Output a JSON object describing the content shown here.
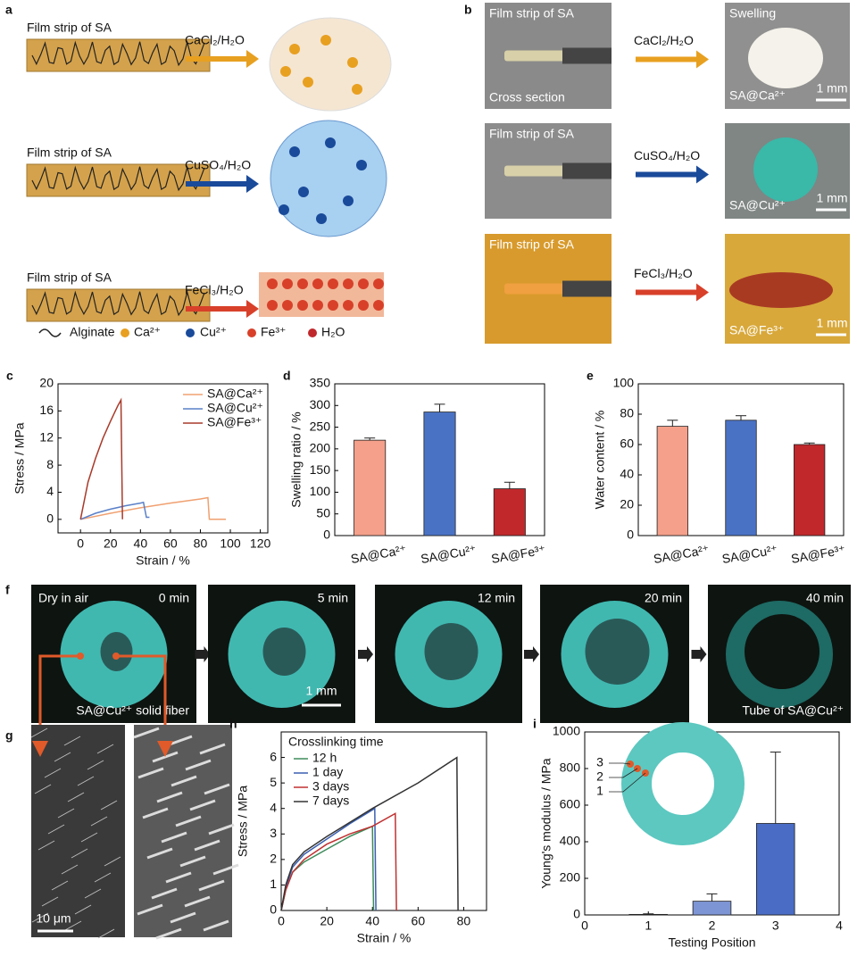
{
  "panels": {
    "a": {
      "label": "a",
      "rows": [
        {
          "strip": "Film strip of SA",
          "reagent": "CaCl₂/H₂O"
        },
        {
          "strip": "Film strip of SA",
          "reagent": "CuSO₄/H₂O"
        },
        {
          "strip": "Film strip of SA",
          "reagent": "FeCl₃/H₂O"
        }
      ],
      "legend": [
        "Alginate",
        "Ca²⁺",
        "Cu²⁺",
        "Fe³⁺",
        "H₂O"
      ]
    },
    "b": {
      "label": "b",
      "rows": [
        {
          "strip": "Film strip of SA",
          "note": "Cross section",
          "reagent": "CaCl₂/H₂O",
          "result_note": "Swelling",
          "result": "SA@Ca²⁺",
          "scale": "1 mm"
        },
        {
          "strip": "Film strip of SA",
          "reagent": "CuSO₄/H₂O",
          "result": "SA@Cu²⁺",
          "scale": "1 mm"
        },
        {
          "strip": "Film strip of SA",
          "reagent": "FeCl₃/H₂O",
          "result": "SA@Fe³⁺",
          "scale": "1 mm"
        }
      ]
    },
    "f": {
      "label": "f",
      "frames": [
        {
          "time": "0 min",
          "title": "Dry in air",
          "caption": "SA@Cu²⁺ solid fiber"
        },
        {
          "time": "5 min",
          "scale": "1 mm"
        },
        {
          "time": "12 min"
        },
        {
          "time": "20 min"
        },
        {
          "time": "40 min",
          "caption": "Tube of SA@Cu²⁺"
        }
      ]
    },
    "g": {
      "label": "g",
      "scale": "10 μm"
    }
  },
  "chart_data": [
    {
      "type": "line",
      "panel": "c",
      "y_label": "Stress / MPa",
      "x_label": "Strain / %",
      "xlim": [
        -15,
        125
      ],
      "xticks": [
        0,
        20,
        40,
        60,
        80,
        100,
        120
      ],
      "ylim": [
        -2,
        20
      ],
      "yticks": [
        0,
        4,
        8,
        12,
        16,
        20
      ],
      "legend": "upper right",
      "series": [
        {
          "name": "SA@Ca²⁺",
          "color": "#f0a070",
          "x": [
            0,
            20,
            40,
            60,
            80,
            85,
            86,
            97
          ],
          "values": [
            0,
            0.9,
            1.7,
            2.4,
            3.0,
            3.2,
            0,
            0
          ]
        },
        {
          "name": "SA@Cu²⁺",
          "color": "#5a80c8",
          "x": [
            0,
            10,
            20,
            30,
            40,
            42,
            44,
            46
          ],
          "values": [
            0,
            0.9,
            1.5,
            2.0,
            2.4,
            2.5,
            0.3,
            0.3
          ]
        },
        {
          "name": "SA@Fe³⁺",
          "color": "#a83a2a",
          "x": [
            0,
            5,
            10,
            15,
            20,
            25,
            27,
            28
          ],
          "values": [
            0,
            5.5,
            9,
            12,
            14.5,
            16.8,
            17.6,
            0
          ]
        }
      ]
    },
    {
      "type": "bar",
      "panel": "d",
      "y_label": "Swelling ratio / %",
      "categories": [
        "SA@Ca²⁺",
        "SA@Cu²⁺",
        "SA@Fe³⁺"
      ],
      "values": [
        220,
        285,
        108
      ],
      "errors": [
        5,
        18,
        15
      ],
      "colors": [
        "#f4a08a",
        "#4a72c4",
        "#c0282c"
      ],
      "ylim": [
        0,
        350
      ],
      "yticks": [
        0,
        50,
        100,
        150,
        200,
        250,
        300,
        350
      ]
    },
    {
      "type": "bar",
      "panel": "e",
      "y_label": "Water content / %",
      "categories": [
        "SA@Ca²⁺",
        "SA@Cu²⁺",
        "SA@Fe³⁺"
      ],
      "values": [
        72,
        76,
        60
      ],
      "errors": [
        4,
        3,
        1
      ],
      "colors": [
        "#f4a08a",
        "#4a72c4",
        "#c0282c"
      ],
      "ylim": [
        0,
        100
      ],
      "yticks": [
        0,
        20,
        40,
        60,
        80,
        100
      ]
    },
    {
      "type": "line",
      "panel": "h",
      "y_label": "Stress / MPa",
      "x_label": "Strain / %",
      "xlim": [
        0,
        90
      ],
      "xticks": [
        0,
        20,
        40,
        60,
        80
      ],
      "ylim": [
        0,
        7
      ],
      "yticks": [
        0,
        1,
        2,
        3,
        4,
        5,
        6
      ],
      "legend": "upper left",
      "legend_title": "Crosslinking time",
      "series": [
        {
          "name": "12 h",
          "color": "#3d8b5a",
          "x": [
            0,
            2,
            5,
            10,
            20,
            30,
            40,
            40.5
          ],
          "values": [
            0,
            0.8,
            1.5,
            1.9,
            2.4,
            2.9,
            3.3,
            0
          ]
        },
        {
          "name": "1 day",
          "color": "#3a5fb0",
          "x": [
            0,
            2,
            5,
            10,
            20,
            30,
            41,
            41.5
          ],
          "values": [
            0,
            0.9,
            1.7,
            2.2,
            2.8,
            3.4,
            4.0,
            0
          ]
        },
        {
          "name": "3 days",
          "color": "#c03030",
          "x": [
            0,
            2,
            5,
            10,
            20,
            30,
            40,
            50,
            50.5
          ],
          "values": [
            0,
            0.8,
            1.5,
            2.0,
            2.6,
            3.0,
            3.3,
            3.8,
            0
          ]
        },
        {
          "name": "7 days",
          "color": "#333333",
          "x": [
            0,
            2,
            5,
            10,
            20,
            40,
            60,
            77,
            77.5
          ],
          "values": [
            0,
            1.0,
            1.8,
            2.3,
            2.9,
            4.0,
            5.0,
            6.0,
            0
          ]
        }
      ]
    },
    {
      "type": "bar",
      "panel": "i",
      "y_label": "Young's modulus / MPa",
      "x_label": "Testing Position",
      "x": [
        1,
        2,
        3
      ],
      "values": [
        3,
        75,
        500
      ],
      "errors": [
        3,
        40,
        390
      ],
      "colors": [
        "#9fb3e0",
        "#7d95d4",
        "#4a6cc4"
      ],
      "xlim": [
        0,
        4
      ],
      "xticks": [
        0,
        1,
        2,
        3,
        4
      ],
      "ylim": [
        0,
        1000
      ],
      "yticks": [
        0,
        200,
        400,
        600,
        800,
        1000
      ],
      "inset_labels": [
        "3",
        "2",
        "1"
      ]
    }
  ]
}
